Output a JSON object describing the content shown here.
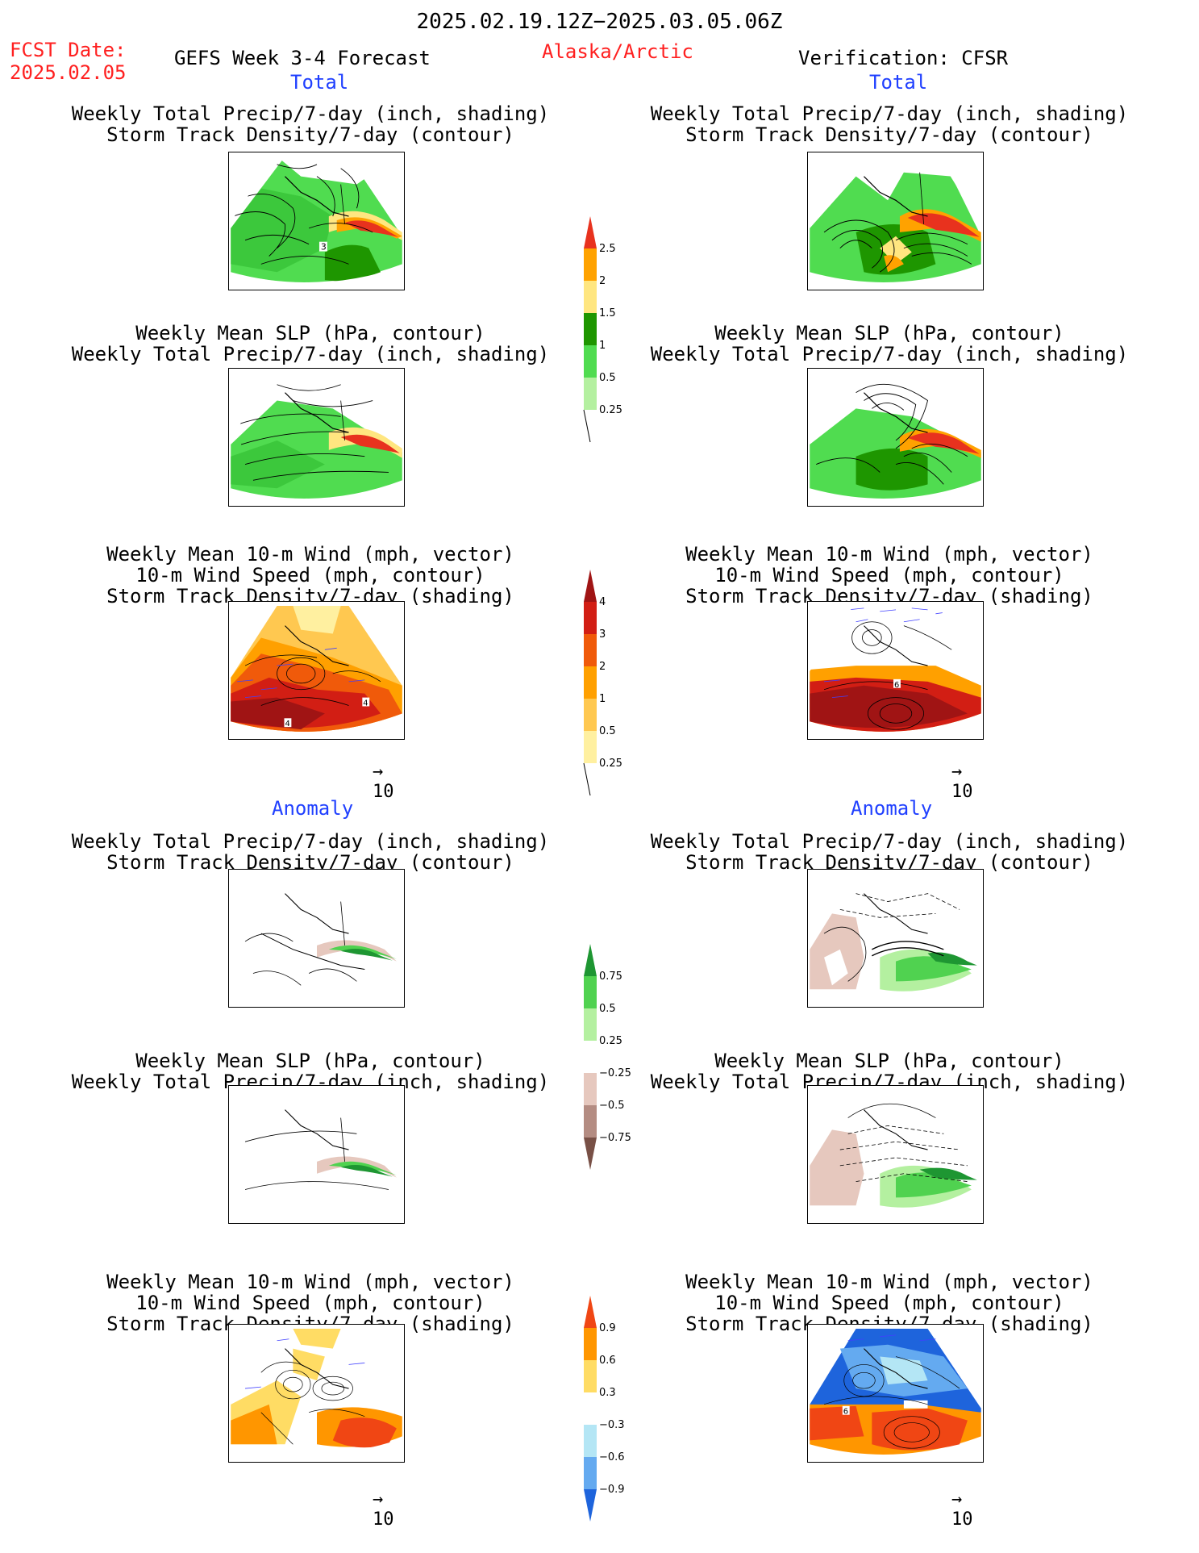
{
  "header": {
    "period": "2025.02.19.12Z−2025.03.05.06Z",
    "fcst_label": "FCST Date:",
    "fcst_date": "2025.02.05",
    "model": "GEFS Week 3-4 Forecast",
    "region": "Alaska/Arctic",
    "verification": "Verification: CFSR"
  },
  "sections": {
    "total": "Total",
    "anomaly": "Anomaly"
  },
  "panel_titles": {
    "precip_storm": [
      "Weekly Total Precip/7-day (inch, shading)",
      "Storm Track Density/7-day (contour)"
    ],
    "slp_precip": [
      "Weekly Mean SLP (hPa, contour)",
      "Weekly Total Precip/7-day (inch, shading)"
    ],
    "wind_storm": [
      "Weekly Mean 10-m Wind (mph, vector)",
      "10-m Wind Speed (mph, contour)",
      "Storm Track Density/7-day (shading)"
    ]
  },
  "map_labels": {
    "fcst_total_precip": "3",
    "fcst_total_wind_a": "4",
    "fcst_total_wind_b": "4",
    "ver_total_wind": "6",
    "ver_anom_wind": "6"
  },
  "vector_ref": {
    "arrow": "→",
    "value": "10"
  },
  "colorbars": {
    "precip_total": {
      "labels": [
        "2.5",
        "2",
        "1.5",
        "1",
        "0.5",
        "0.25"
      ],
      "colors": [
        "#e8321e",
        "#ffa200",
        "#ffe680",
        "#1e9600",
        "#50dc50",
        "#b4f0a0"
      ]
    },
    "storm_total": {
      "labels": [
        "4",
        "3",
        "2",
        "1",
        "0.5",
        "0.25"
      ],
      "colors": [
        "#a01414",
        "#d21e14",
        "#f05a0a",
        "#ffa000",
        "#ffc850",
        "#fff0a0"
      ]
    },
    "precip_anom": {
      "labels": [
        "0.75",
        "0.5",
        "0.25",
        "−0.25",
        "−0.5",
        "−0.75"
      ],
      "colors": [
        "#1e9632",
        "#50d250",
        "#b4f0a0",
        "#ffffff",
        "#e6c8be",
        "#b48c82",
        "#785046"
      ]
    },
    "storm_anom": {
      "labels": [
        "0.9",
        "0.6",
        "0.3",
        "−0.3",
        "−0.6",
        "−0.9"
      ],
      "colors": [
        "#f04614",
        "#ff9600",
        "#ffdc64",
        "#ffffff",
        "#b4e6f5",
        "#64aaf0",
        "#1e64dc"
      ]
    }
  }
}
